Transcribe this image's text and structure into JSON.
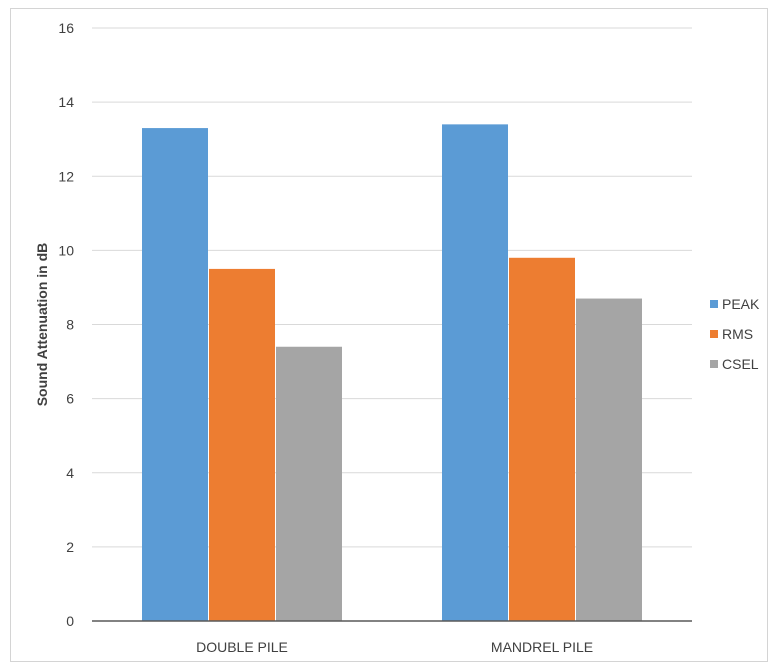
{
  "chart_data": {
    "type": "bar",
    "title": "",
    "xlabel": "",
    "ylabel": "Sound Attenuation in dB",
    "ylim": [
      0,
      16
    ],
    "yticks": [
      0,
      2,
      4,
      6,
      8,
      10,
      12,
      14,
      16
    ],
    "grid": true,
    "legend_position": "right",
    "categories": [
      "DOUBLE PILE",
      "MANDREL PILE"
    ],
    "series": [
      {
        "name": "PEAK",
        "color": "#5b9bd5",
        "values": [
          13.3,
          13.4
        ]
      },
      {
        "name": "RMS",
        "color": "#ed7d31",
        "values": [
          9.5,
          9.8
        ]
      },
      {
        "name": "CSEL",
        "color": "#a5a5a5",
        "values": [
          7.4,
          8.7
        ]
      }
    ]
  }
}
